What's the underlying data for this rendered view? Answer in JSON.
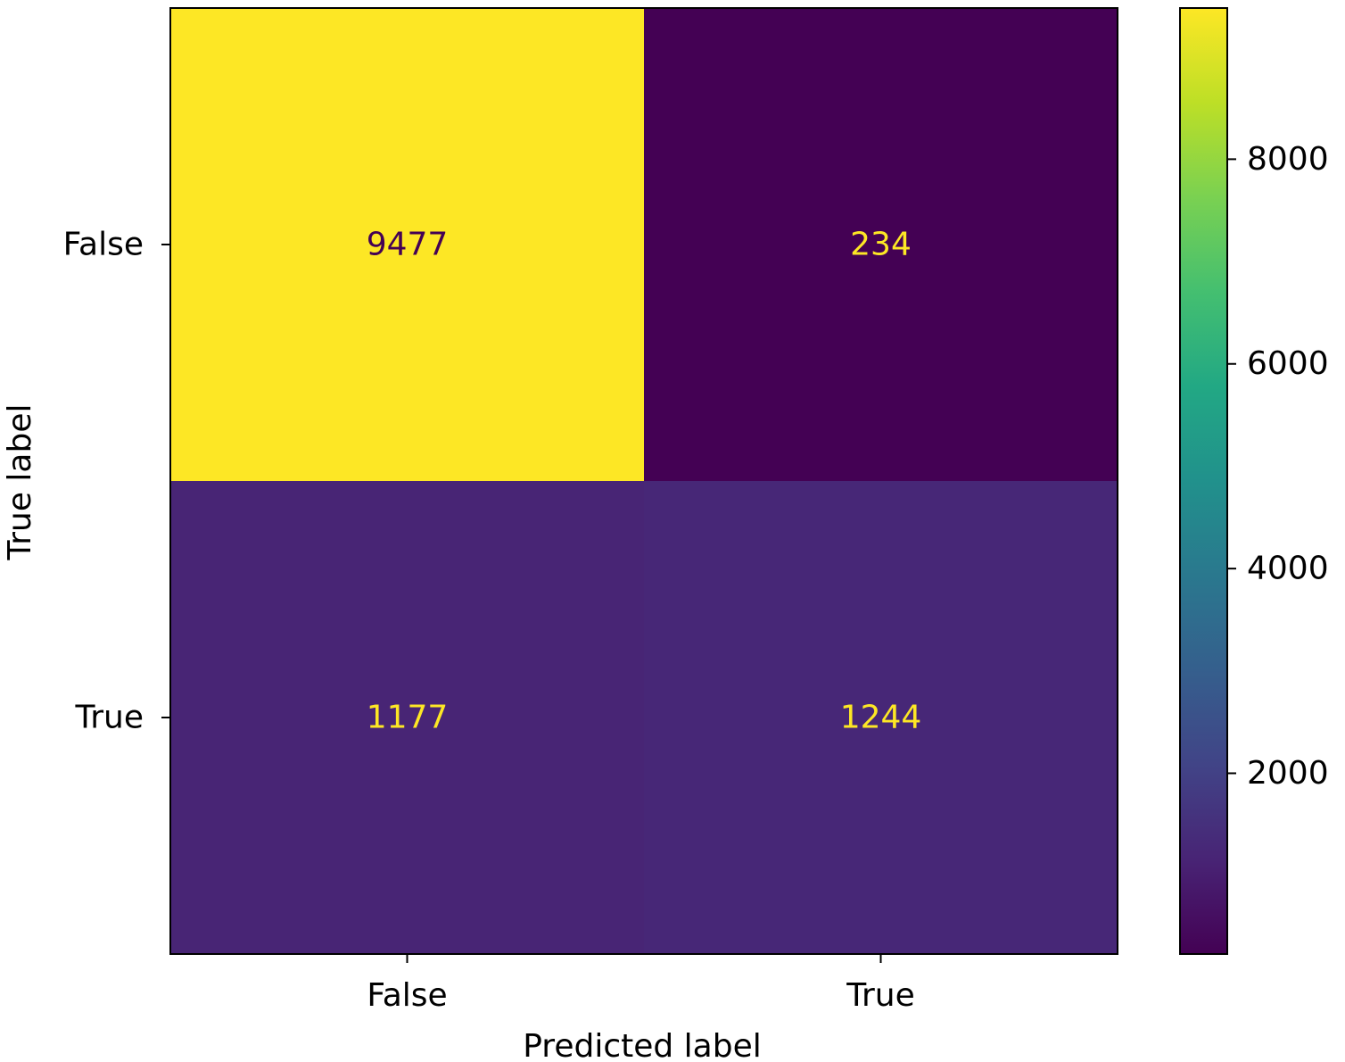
{
  "chart_data": {
    "type": "heatmap",
    "title": "",
    "xlabel": "Predicted label",
    "ylabel": "True label",
    "x_categories": [
      "False",
      "True"
    ],
    "y_categories": [
      "False",
      "True"
    ],
    "values": [
      [
        9477,
        234
      ],
      [
        1177,
        1244
      ]
    ],
    "colormap": "viridis",
    "colorbar": {
      "range": [
        234,
        9477
      ],
      "ticks": [
        2000,
        4000,
        6000,
        8000
      ],
      "tick_labels": [
        "2000",
        "4000",
        "6000",
        "8000"
      ]
    },
    "annotation_colors": {
      "on_light": "#440154",
      "on_dark": "#fde725"
    },
    "grid": false,
    "legend": "colorbar-right"
  }
}
